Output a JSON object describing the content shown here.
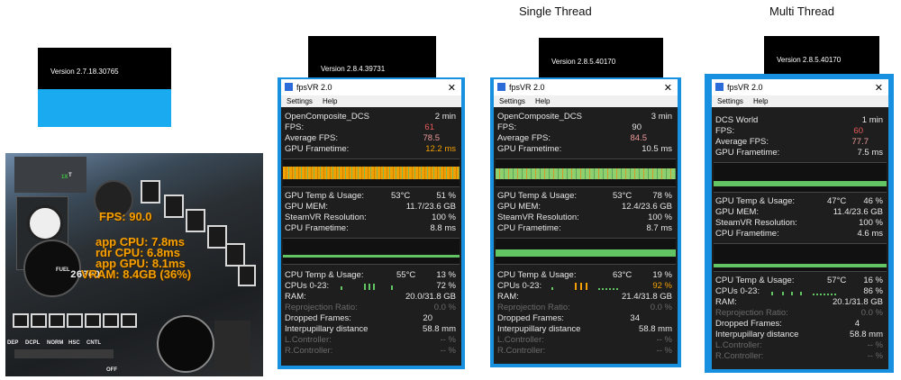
{
  "headings": {
    "single": "Single Thread",
    "multi": "Multi Thread"
  },
  "version_boxes": [
    {
      "text": "Version 2.7.18.30765"
    },
    {
      "text": "Version 2.8.4.39731"
    },
    {
      "text": "Version 2.8.5.40170"
    },
    {
      "text": "Version 2.8.5.40170"
    }
  ],
  "cockpit": {
    "overlay": [
      "FPS: 90.0",
      "app CPU: 7.8ms",
      "rdr CPU: 6.8ms",
      "app GPU: 8.1ms",
      "VRAM: 8.4GB (36%)"
    ],
    "labels": [
      "DEP",
      "DCPL",
      "NORM",
      "HSC",
      "CNTL",
      "FUEL",
      "26800",
      "T",
      "1X",
      "OFF"
    ]
  },
  "windows": [
    {
      "title": "fpsVR 2.0",
      "close": "✕",
      "menu": [
        "Settings",
        "Help"
      ],
      "top": [
        {
          "label": "OpenComposite_DCS",
          "value": "2 min"
        },
        {
          "label": "FPS:",
          "value": "61",
          "color": "#e85a5a"
        },
        {
          "label": "Average FPS:",
          "value": "78.5",
          "color": "#ee9a9a"
        },
        {
          "label": "GPU Frametime:",
          "value": "12.2 ms",
          "color": "#f2a000"
        }
      ],
      "gpu_graph_color": "#f2a000",
      "mid": [
        {
          "label": "GPU Temp & Usage:",
          "v1": "53°C",
          "value": "51 %"
        },
        {
          "label": "GPU MEM:",
          "value": "11.7/23.6 GB"
        },
        {
          "label": "SteamVR Resolution:",
          "value": "100 %"
        },
        {
          "label": "CPU Frametime:",
          "value": "8.8 ms"
        }
      ],
      "low": [
        {
          "label": "CPU Temp & Usage:",
          "v1": "55°C",
          "value": "13 %"
        },
        {
          "label": "CPUs 0-23:",
          "value": "72 %"
        },
        {
          "label": "RAM:",
          "value": "20.0/31.8 GB"
        },
        {
          "label": "Reprojection Ratio:",
          "value": "0.0 %",
          "dim": true
        },
        {
          "label": "Dropped Frames:",
          "value": "20"
        },
        {
          "label": "Interpupillary distance",
          "value": "58.8 mm"
        },
        {
          "label": "L.Controller:",
          "value": "-- %",
          "dim": true
        },
        {
          "label": "R.Controller:",
          "value": "-- %",
          "dim": true
        }
      ]
    },
    {
      "title": "fpsVR 2.0",
      "close": "✕",
      "menu": [
        "Settings",
        "Help"
      ],
      "top": [
        {
          "label": "OpenComposite_DCS",
          "value": "3 min"
        },
        {
          "label": "FPS:",
          "value": "90",
          "color": "#e6e6e6"
        },
        {
          "label": "Average FPS:",
          "value": "84.5",
          "color": "#ee9a9a"
        },
        {
          "label": "GPU Frametime:",
          "value": "10.5 ms",
          "color": "#e6e6e6"
        }
      ],
      "gpu_graph_color": "#8ed06e",
      "mid": [
        {
          "label": "GPU Temp & Usage:",
          "v1": "53°C",
          "value": "78 %"
        },
        {
          "label": "GPU MEM:",
          "value": "12.4/23.6 GB"
        },
        {
          "label": "SteamVR Resolution:",
          "value": "100 %"
        },
        {
          "label": "CPU Frametime:",
          "value": "8.7 ms"
        }
      ],
      "low": [
        {
          "label": "CPU Temp & Usage:",
          "v1": "63°C",
          "value": "19 %"
        },
        {
          "label": "CPUs 0-23:",
          "value": "92 %",
          "color": "#f2a000"
        },
        {
          "label": "RAM:",
          "value": "21.4/31.8 GB"
        },
        {
          "label": "Reprojection Ratio:",
          "value": "0.0 %",
          "dim": true
        },
        {
          "label": "Dropped Frames:",
          "value": "34"
        },
        {
          "label": "Interpupillary distance",
          "value": "58.8 mm"
        },
        {
          "label": "L.Controller:",
          "value": "-- %",
          "dim": true
        },
        {
          "label": "R.Controller:",
          "value": "-- %",
          "dim": true
        }
      ]
    },
    {
      "title": "fpsVR 2.0",
      "close": "✕",
      "menu": [
        "Settings",
        "Help"
      ],
      "top": [
        {
          "label": "DCS World",
          "value": "1 min"
        },
        {
          "label": "FPS:",
          "value": "60",
          "color": "#e85a5a"
        },
        {
          "label": "Average FPS:",
          "value": "77.7",
          "color": "#ee9a9a"
        },
        {
          "label": "GPU Frametime:",
          "value": "7.5 ms",
          "color": "#e6e6e6"
        }
      ],
      "gpu_graph_color": "#62c462",
      "mid": [
        {
          "label": "GPU Temp & Usage:",
          "v1": "47°C",
          "value": "46 %"
        },
        {
          "label": "GPU MEM:",
          "value": "11.4/23.6 GB"
        },
        {
          "label": "SteamVR Resolution:",
          "value": "100 %"
        },
        {
          "label": "CPU Frametime:",
          "value": "4.6 ms"
        }
      ],
      "low": [
        {
          "label": "CPU Temp & Usage:",
          "v1": "57°C",
          "value": "16 %"
        },
        {
          "label": "CPUs 0-23:",
          "value": "86 %"
        },
        {
          "label": "RAM:",
          "value": "20.1/31.8 GB"
        },
        {
          "label": "Reprojection Ratio:",
          "value": "0.0 %",
          "dim": true
        },
        {
          "label": "Dropped Frames:",
          "value": "4"
        },
        {
          "label": "Interpupillary distance",
          "value": "58.8 mm"
        },
        {
          "label": "L.Controller:",
          "value": "-- %",
          "dim": true
        },
        {
          "label": "R.Controller:",
          "value": "-- %",
          "dim": true
        }
      ]
    }
  ]
}
